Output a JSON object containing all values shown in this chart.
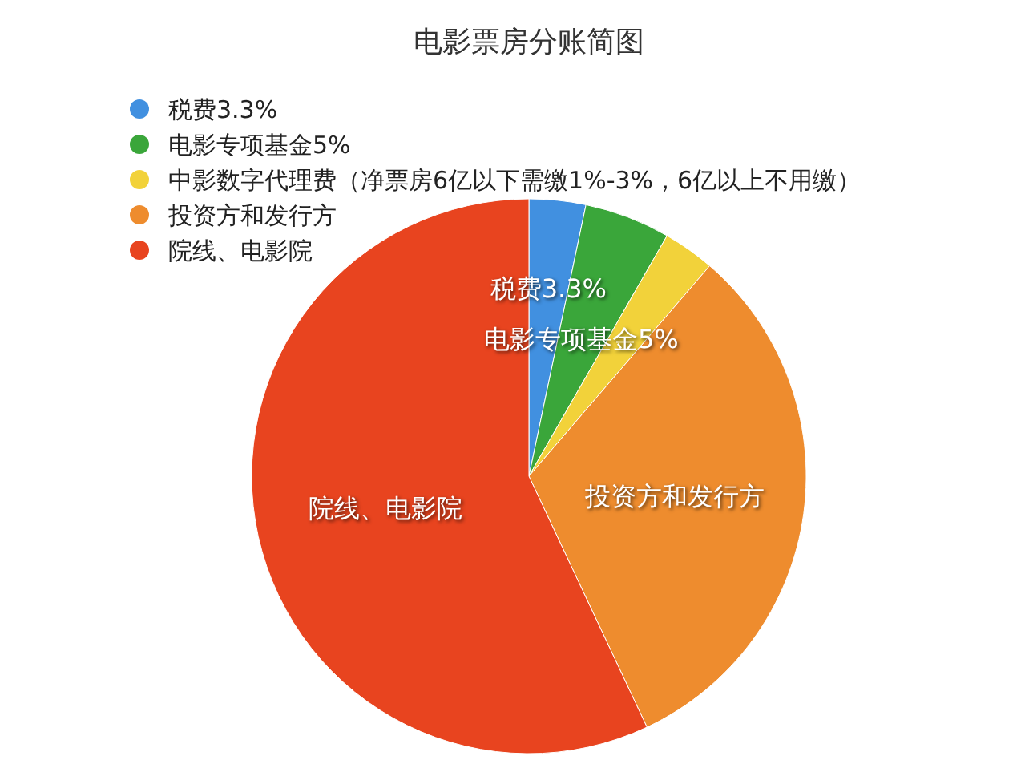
{
  "chart_data": {
    "type": "pie",
    "title": "电影票房分账简图",
    "categories": [
      "税费3.3%",
      "电影专项基金5%",
      "中影数字代理费（净票房6亿以下需缴1%-3%，6亿以上不用缴）",
      "投资方和发行方",
      "院线、电影院"
    ],
    "values": [
      3.3,
      5,
      3,
      31.7,
      57
    ],
    "colors": [
      "#4190e0",
      "#3aa63a",
      "#f2d23a",
      "#ee8c2e",
      "#e8441f"
    ],
    "value_labels": [
      "税费3.3%",
      "电影专项基金5%",
      null,
      "投资方和发行方",
      "院线、电影院"
    ],
    "legend": "top left"
  }
}
